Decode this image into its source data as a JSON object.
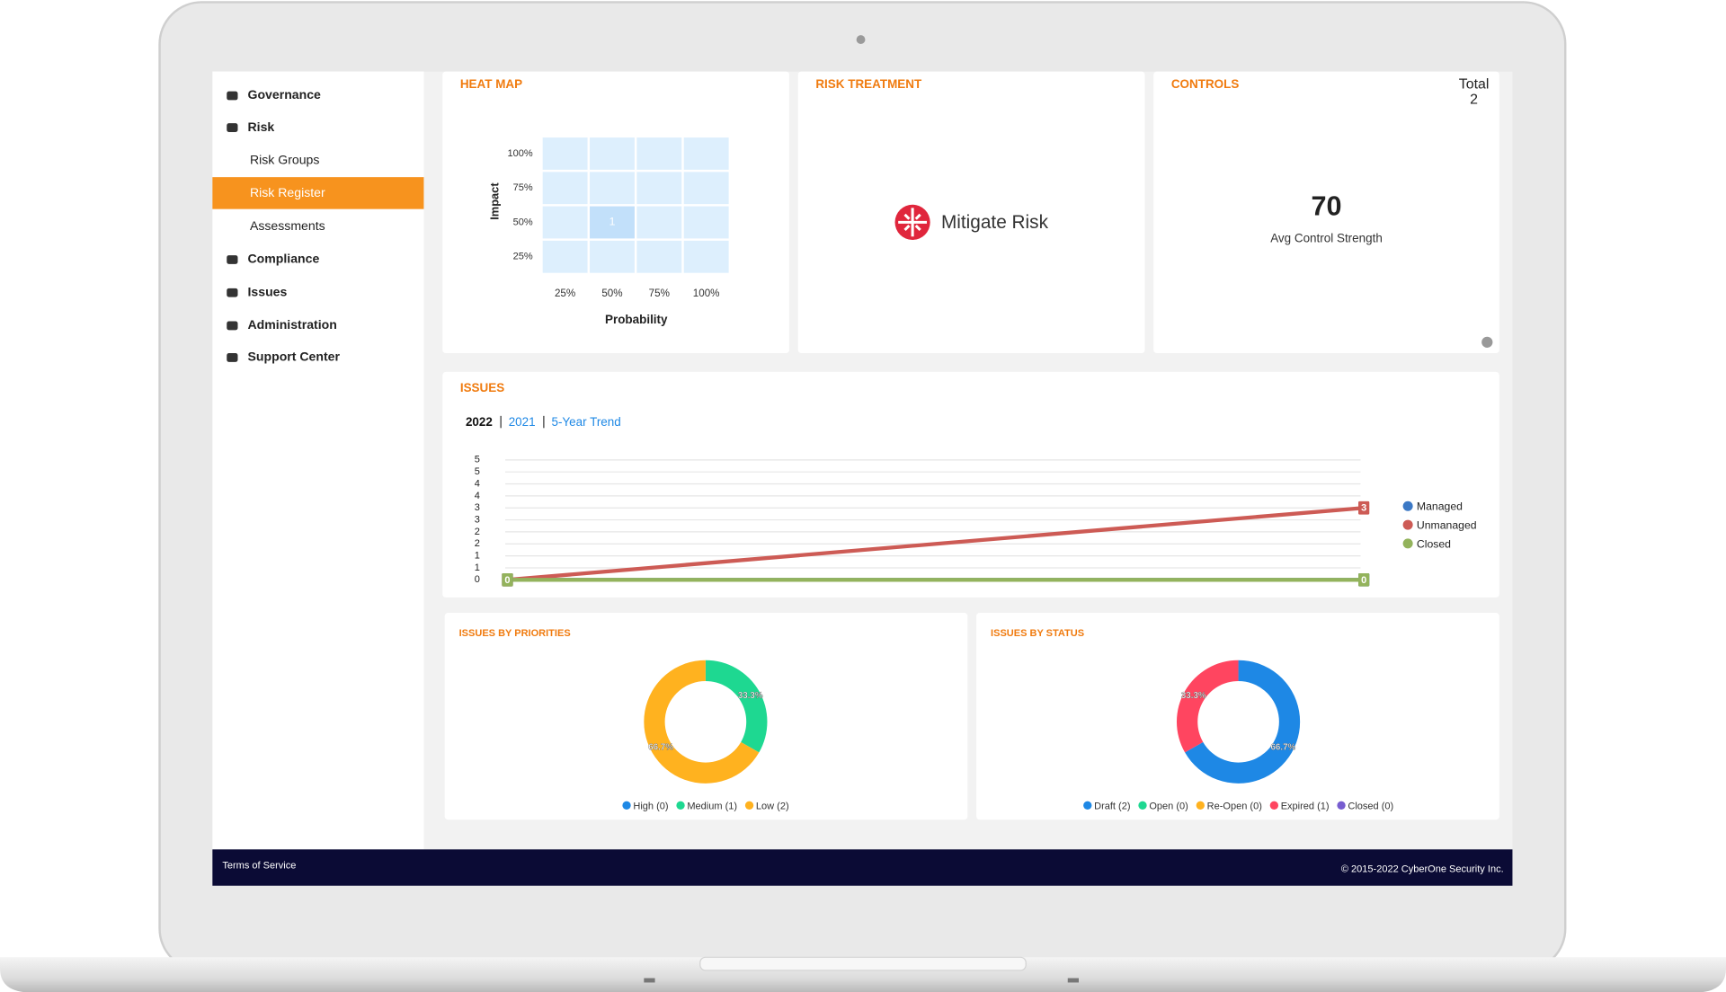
{
  "sidebar": {
    "items": [
      "Governance",
      "Risk",
      "Risk Groups",
      "Risk Register",
      "Assessments",
      "Compliance",
      "Issues",
      "Administration",
      "Support Center"
    ],
    "active_index": 3
  },
  "heat_map": {
    "title": "HEAT MAP",
    "chart_data": {
      "type": "heatmap",
      "y_label": "Impact",
      "x_label": "Probability",
      "y_categories": [
        "100%",
        "75%",
        "50%",
        "25%"
      ],
      "x_categories": [
        "25%",
        "50%",
        "75%",
        "100%"
      ],
      "values": [
        [
          null,
          null,
          null,
          null
        ],
        [
          null,
          null,
          null,
          null
        ],
        [
          null,
          1,
          null,
          null
        ],
        [
          null,
          null,
          null,
          null
        ]
      ]
    }
  },
  "risk_treatment": {
    "title": "RISK TREATMENT",
    "label": "Mitigate Risk"
  },
  "controls": {
    "title": "CONTROLS",
    "total_label": "Total",
    "total": 2,
    "value": 70,
    "value_label": "Avg Control Strength"
  },
  "issues": {
    "title": "ISSUES",
    "tabs": [
      "2022",
      "2021",
      "5-Year Trend"
    ],
    "chart_data": {
      "type": "line",
      "categories": [
        null,
        null
      ],
      "ylim": [
        0,
        5
      ],
      "yticks": [
        0,
        {
          "value": 0.5,
          "label": "1"
        },
        1,
        {
          "value": 1.5,
          "label": "2"
        },
        2,
        {
          "value": 2.5,
          "label": "3"
        },
        3,
        {
          "value": 3.5,
          "label": "4"
        },
        4,
        {
          "value": 4.5,
          "label": "5"
        },
        5
      ],
      "series": [
        {
          "name": "Managed",
          "color": "#3b78c5",
          "values": [
            0,
            0
          ]
        },
        {
          "name": "Unmanaged",
          "color": "#cd5b55",
          "values": [
            0,
            3
          ]
        },
        {
          "name": "Closed",
          "color": "#93b35c",
          "values": [
            0,
            0
          ]
        }
      ]
    }
  },
  "issues_by_priorities": {
    "title": "ISSUES BY PRIORITIES",
    "chart_data": {
      "type": "donut",
      "categories": [
        "High",
        "Medium",
        "Low"
      ],
      "legend_labels": [
        "High (0)",
        "Medium (1)",
        "Low (2)"
      ],
      "colors": [
        "#1e88e5",
        "#1ed891",
        "#ffb21f"
      ],
      "values": [
        0,
        33.3,
        66.7
      ],
      "value_labels": [
        null,
        "33.3%",
        "66.7%"
      ]
    }
  },
  "issues_by_status": {
    "title": "ISSUES BY STATUS",
    "chart_data": {
      "type": "donut",
      "categories": [
        "Draft",
        "Open",
        "Re-Open",
        "Expired",
        "Closed"
      ],
      "legend_labels": [
        "Draft (2)",
        "Open (0)",
        "Re-Open (0)",
        "Expired (1)",
        "Closed (0)"
      ],
      "colors": [
        "#1e88e5",
        "#1ed891",
        "#ffb21f",
        "#ff4560",
        "#775dd0"
      ],
      "values": [
        66.7,
        0,
        0,
        33.3,
        0
      ],
      "value_labels": [
        "66.7%",
        null,
        null,
        "33.3%",
        null
      ]
    }
  },
  "footer": {
    "left": "Terms of Service",
    "right": "© 2015-2022 CyberOne Security Inc."
  }
}
